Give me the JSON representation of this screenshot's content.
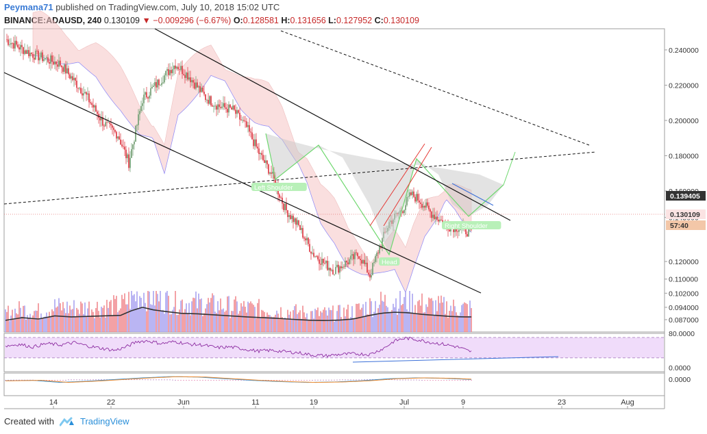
{
  "header": {
    "author": "Peymana71",
    "published_text": "published on TradingView.com, July 10, 2018 15:02 UTC",
    "symbol": "BINANCE:ADAUSD, 240",
    "last": "0.130109",
    "change_arrow": "▼",
    "change": "−0.009296 (−6.67%)",
    "o_label": "O:",
    "o_value": "0.128581",
    "h_label": "H:",
    "h_value": "0.131656",
    "l_label": "L:",
    "l_value": "0.127952",
    "c_label": "C:",
    "c_value": "0.130109"
  },
  "footer": {
    "created_with": "Created with",
    "brand": "TradingView"
  },
  "colors": {
    "up": "#7aa37a",
    "down": "#e0454f",
    "vol_up": "#a9a3f0",
    "vol_down": "#f08a8f",
    "cloud_red": "#f6c6c6",
    "cloud_green": "#cfe8cf",
    "pattern_fill": "#c8c8c8",
    "pattern_stroke": "#6fd86f",
    "rsi_band": "#f0dcfa",
    "rsi_line": "#8b2aa0"
  },
  "chart_data": {
    "type": "candlestick",
    "price_axis": {
      "ticks": [
        "0.240000",
        "0.220000",
        "0.200000",
        "0.180000",
        "0.160000",
        "0.145000",
        "0.120000",
        "0.110000",
        "0.102000",
        "0.094000",
        "0.087000"
      ],
      "tick_values": [
        0.24,
        0.22,
        0.2,
        0.18,
        0.16,
        0.145,
        0.12,
        0.11,
        0.102,
        0.094,
        0.087
      ],
      "current_badge": "0.139405",
      "last_badge": "0.130109",
      "countdown": "57:40"
    },
    "rsi_axis": {
      "ticks": [
        "80.0000",
        "0.0000"
      ]
    },
    "macd_axis": {
      "ticks": [
        "0.0000"
      ]
    },
    "x_axis": {
      "ticks": [
        "14",
        "22",
        "Jun",
        "11",
        "19",
        "Jul",
        "9",
        "23",
        "Aug"
      ]
    },
    "annotations": [
      {
        "label": "Left Shoulder"
      },
      {
        "label": "Head"
      },
      {
        "label": "Right Shoulder"
      }
    ],
    "ohlc_last": {
      "open": 0.128581,
      "high": 0.131656,
      "low": 0.127952,
      "close": 0.130109
    },
    "close_path": [
      [
        0,
        0.246
      ],
      [
        18,
        0.238
      ],
      [
        40,
        0.232
      ],
      [
        58,
        0.215
      ],
      [
        72,
        0.198
      ],
      [
        82,
        0.192
      ],
      [
        90,
        0.176
      ],
      [
        100,
        0.212
      ],
      [
        112,
        0.222
      ],
      [
        124,
        0.232
      ],
      [
        134,
        0.225
      ],
      [
        146,
        0.213
      ],
      [
        156,
        0.208
      ],
      [
        166,
        0.206
      ],
      [
        176,
        0.196
      ],
      [
        186,
        0.18
      ],
      [
        194,
        0.17
      ],
      [
        204,
        0.15
      ],
      [
        214,
        0.14
      ],
      [
        224,
        0.125
      ],
      [
        234,
        0.118
      ],
      [
        240,
        0.115
      ],
      [
        250,
        0.12
      ],
      [
        258,
        0.124
      ],
      [
        266,
        0.112
      ],
      [
        272,
        0.126
      ],
      [
        280,
        0.142
      ],
      [
        290,
        0.15
      ],
      [
        296,
        0.158
      ],
      [
        302,
        0.155
      ],
      [
        310,
        0.148
      ],
      [
        318,
        0.143
      ],
      [
        324,
        0.14
      ],
      [
        332,
        0.139
      ],
      [
        340,
        0.136
      ],
      [
        348,
        0.132
      ]
    ],
    "volume_path": [
      [
        0,
        0.45
      ],
      [
        12,
        0.55
      ],
      [
        24,
        0.5
      ],
      [
        36,
        0.62
      ],
      [
        48,
        0.58
      ],
      [
        60,
        0.6
      ],
      [
        72,
        0.62
      ],
      [
        84,
        0.64
      ],
      [
        92,
        0.82
      ],
      [
        100,
        0.95
      ],
      [
        108,
        0.85
      ],
      [
        118,
        0.78
      ],
      [
        128,
        0.72
      ],
      [
        140,
        0.7
      ],
      [
        152,
        0.66
      ],
      [
        164,
        0.62
      ],
      [
        176,
        0.58
      ],
      [
        188,
        0.55
      ],
      [
        200,
        0.52
      ],
      [
        212,
        0.48
      ],
      [
        224,
        0.45
      ],
      [
        234,
        0.44
      ],
      [
        244,
        0.46
      ],
      [
        254,
        0.5
      ],
      [
        264,
        0.62
      ],
      [
        274,
        0.72
      ],
      [
        284,
        0.76
      ],
      [
        294,
        0.74
      ],
      [
        304,
        0.68
      ],
      [
        314,
        0.64
      ],
      [
        324,
        0.6
      ],
      [
        334,
        0.58
      ],
      [
        344,
        0.58
      ]
    ],
    "rsi_path": [
      [
        0,
        55
      ],
      [
        10,
        60
      ],
      [
        20,
        52
      ],
      [
        30,
        62
      ],
      [
        40,
        58
      ],
      [
        50,
        65
      ],
      [
        60,
        55
      ],
      [
        70,
        48
      ],
      [
        80,
        42
      ],
      [
        88,
        52
      ],
      [
        96,
        68
      ],
      [
        104,
        70
      ],
      [
        114,
        62
      ],
      [
        124,
        68
      ],
      [
        134,
        60
      ],
      [
        144,
        58
      ],
      [
        154,
        50
      ],
      [
        164,
        52
      ],
      [
        174,
        46
      ],
      [
        184,
        40
      ],
      [
        194,
        42
      ],
      [
        204,
        38
      ],
      [
        214,
        35
      ],
      [
        224,
        28
      ],
      [
        234,
        26
      ],
      [
        244,
        30
      ],
      [
        256,
        32
      ],
      [
        266,
        30
      ],
      [
        276,
        48
      ],
      [
        284,
        70
      ],
      [
        292,
        78
      ],
      [
        300,
        74
      ],
      [
        310,
        66
      ],
      [
        320,
        60
      ],
      [
        330,
        52
      ],
      [
        338,
        40
      ],
      [
        346,
        34
      ]
    ],
    "macd_path": [
      [
        0,
        -0.2
      ],
      [
        20,
        -0.1
      ],
      [
        40,
        -0.6
      ],
      [
        60,
        -0.3
      ],
      [
        80,
        0.1
      ],
      [
        100,
        0.5
      ],
      [
        120,
        0.8
      ],
      [
        140,
        0.7
      ],
      [
        160,
        0.3
      ],
      [
        180,
        -0.1
      ],
      [
        200,
        -0.4
      ],
      [
        220,
        -0.6
      ],
      [
        240,
        -0.5
      ],
      [
        260,
        -0.2
      ],
      [
        280,
        0.3
      ],
      [
        300,
        0.5
      ],
      [
        320,
        0.4
      ],
      [
        340,
        0.1
      ]
    ]
  }
}
